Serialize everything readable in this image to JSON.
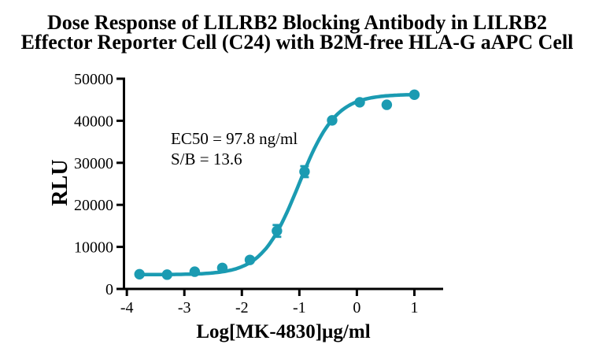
{
  "title": {
    "line1": "Dose Response of LILRB2 Blocking Antibody in LILRB2",
    "line2": "Effector Reporter Cell (C24) with B2M-free HLA-G aAPC Cell"
  },
  "annotation": {
    "ec50_text": "EC50 = 97.8 ng/ml",
    "sb_text": "S/B = 13.6"
  },
  "chart_data": {
    "type": "scatter",
    "title": "Dose Response of LILRB2 Blocking Antibody in LILRB2 Effector Reporter Cell (C24) with B2M-free HLA-G aAPC Cell",
    "xlabel": "Log[MK-4830]µg/ml",
    "ylabel": "RLU",
    "x": [
      -3.78,
      -3.3,
      -2.82,
      -2.34,
      -1.86,
      -1.39,
      -0.91,
      -0.43,
      0.05,
      0.52,
      1.0
    ],
    "y": [
      3500,
      3400,
      4100,
      5000,
      6900,
      13800,
      27900,
      40100,
      44400,
      43800,
      46200
    ],
    "y_err": [
      0,
      0,
      0,
      0,
      0,
      1400,
      1300,
      0,
      0,
      0,
      0
    ],
    "fit": {
      "model": "4PL-sigmoid",
      "bottom": 3400,
      "top": 46300,
      "logEC50": -1.01,
      "hill": 1.35
    },
    "ec50": "97.8 ng/ml",
    "s_over_b": 13.6,
    "x_ticks": [
      -4,
      -3,
      -2,
      -1,
      0,
      1
    ],
    "y_ticks": [
      0,
      10000,
      20000,
      30000,
      40000,
      50000
    ],
    "xlim": [
      -4.05,
      1.5
    ],
    "ylim": [
      0,
      50000
    ],
    "grid": false,
    "legend": "none",
    "curve_color": "#1B9BB2",
    "axis_color": "#000000"
  }
}
